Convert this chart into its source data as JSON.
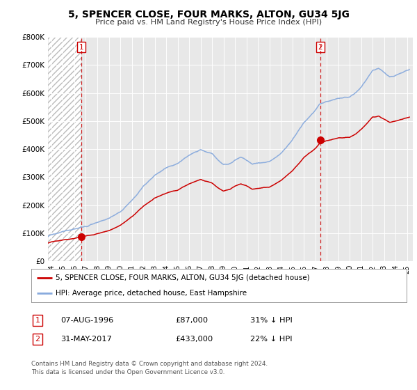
{
  "title": "5, SPENCER CLOSE, FOUR MARKS, ALTON, GU34 5JG",
  "subtitle": "Price paid vs. HM Land Registry's House Price Index (HPI)",
  "background_color": "#ffffff",
  "plot_bg_color": "#e8e8e8",
  "hatch_end_year": 1996.62,
  "sale1_date": 1996.62,
  "sale1_price": 87000,
  "sale1_label": "1",
  "sale2_date": 2017.42,
  "sale2_price": 433000,
  "sale2_label": "2",
  "xmin": 1993.7,
  "xmax": 2025.5,
  "ymin": 0,
  "ymax": 800000,
  "yticks": [
    0,
    100000,
    200000,
    300000,
    400000,
    500000,
    600000,
    700000,
    800000
  ],
  "ytick_labels": [
    "£0",
    "£100K",
    "£200K",
    "£300K",
    "£400K",
    "£500K",
    "£600K",
    "£700K",
    "£800K"
  ],
  "xticks": [
    1994,
    1995,
    1996,
    1997,
    1998,
    1999,
    2000,
    2001,
    2002,
    2003,
    2004,
    2005,
    2006,
    2007,
    2008,
    2009,
    2010,
    2011,
    2012,
    2013,
    2014,
    2015,
    2016,
    2017,
    2018,
    2019,
    2020,
    2021,
    2022,
    2023,
    2024,
    2025
  ],
  "line_red_color": "#cc0000",
  "line_blue_color": "#88aadd",
  "sale_marker_color": "#cc0000",
  "dashed_line_color": "#cc0000",
  "legend_entry1": "5, SPENCER CLOSE, FOUR MARKS, ALTON, GU34 5JG (detached house)",
  "legend_entry2": "HPI: Average price, detached house, East Hampshire",
  "table_row1": [
    "1",
    "07-AUG-1996",
    "£87,000",
    "31% ↓ HPI"
  ],
  "table_row2": [
    "2",
    "31-MAY-2017",
    "£433,000",
    "22% ↓ HPI"
  ],
  "footer": "Contains HM Land Registry data © Crown copyright and database right 2024.\nThis data is licensed under the Open Government Licence v3.0."
}
